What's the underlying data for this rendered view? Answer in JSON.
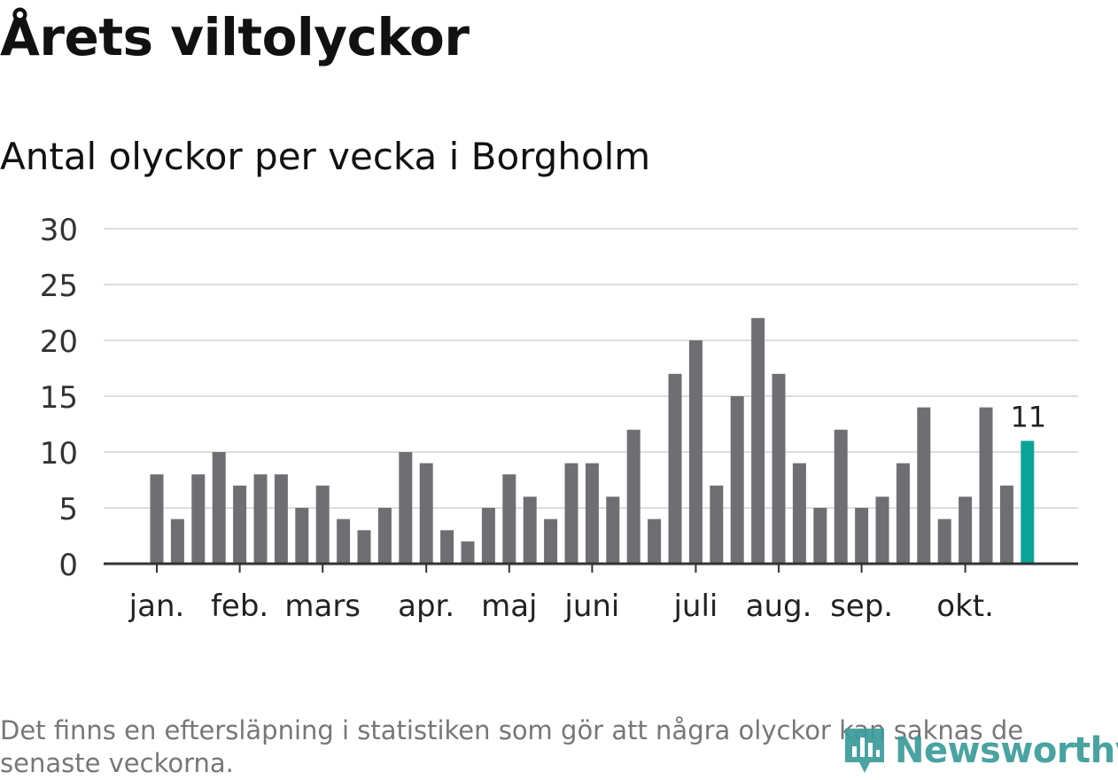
{
  "chart_data": {
    "type": "bar",
    "title": "Årets viltolyckor",
    "subtitle": "Antal olyckor per vecka i Borgholm",
    "xlabel": "",
    "ylabel": "",
    "ylim": [
      0,
      30
    ],
    "yticks": [
      "0",
      "5",
      "10",
      "15",
      "20",
      "25",
      "30"
    ],
    "grid": true,
    "months": [
      {
        "label": "jan.",
        "week": 1
      },
      {
        "label": "feb.",
        "week": 5
      },
      {
        "label": "mars",
        "week": 9
      },
      {
        "label": "apr.",
        "week": 14
      },
      {
        "label": "maj",
        "week": 18
      },
      {
        "label": "juni",
        "week": 22
      },
      {
        "label": "juli",
        "week": 27
      },
      {
        "label": "aug.",
        "week": 31
      },
      {
        "label": "sep.",
        "week": 35
      },
      {
        "label": "okt.",
        "week": 40
      }
    ],
    "weeks": [
      1,
      2,
      3,
      4,
      5,
      6,
      7,
      8,
      9,
      10,
      11,
      12,
      13,
      14,
      15,
      16,
      17,
      18,
      19,
      20,
      21,
      22,
      23,
      24,
      25,
      26,
      27,
      28,
      29,
      30,
      31,
      32,
      33,
      34,
      35,
      36,
      37,
      38,
      39,
      40,
      41,
      42,
      43
    ],
    "values": [
      8,
      4,
      8,
      10,
      7,
      8,
      8,
      5,
      7,
      4,
      3,
      5,
      10,
      9,
      3,
      2,
      5,
      8,
      6,
      4,
      9,
      9,
      6,
      12,
      4,
      17,
      20,
      7,
      15,
      22,
      17,
      9,
      5,
      12,
      5,
      6,
      9,
      14,
      4,
      6,
      14,
      7,
      11
    ],
    "highlight_index": 42,
    "highlight_label": "11",
    "bar_color": "#6f6e73",
    "highlight_color": "#0aa397"
  },
  "footnote": "Det finns en eftersläpning i statistiken som gör att några olyckor kan saknas de senaste veckorna.",
  "logo": {
    "text": "Newsworthy",
    "icon": "bar-chart-pin-icon",
    "color": "#3a9c9a"
  }
}
